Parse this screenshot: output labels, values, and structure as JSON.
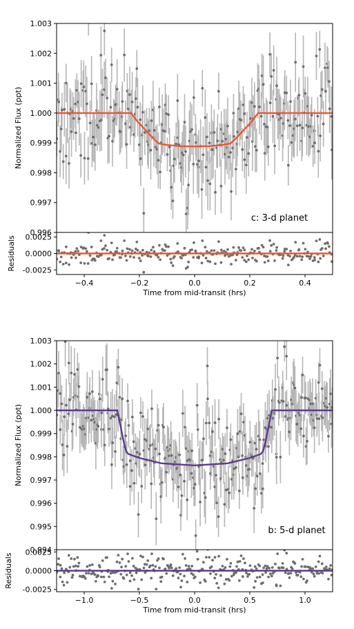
{
  "chart_data": [
    {
      "type": "scatter",
      "panel_label": "c: 3-d planet",
      "ylabel": "Normalized Flux (ppt)",
      "xlabel": "Time from mid-transit (hrs)",
      "residuals_ylabel": "Residuals",
      "xlim": [
        -0.5,
        0.5
      ],
      "ylim": [
        0.996,
        1.003
      ],
      "yticks": [
        "1.003",
        "1.002",
        "1.001",
        "1.000",
        "0.999",
        "0.998",
        "0.997",
        "0.996"
      ],
      "residuals_ylim": [
        -0.0032,
        0.0032
      ],
      "residuals_yticks": [
        "0.0025",
        "0.0000",
        "-0.0025"
      ],
      "xticks": [
        "-0.4",
        "-0.2",
        "0.0",
        "0.2",
        "0.4"
      ],
      "model_color": "#f0532b",
      "point_color": "#6e6e6e",
      "errorbar_color": "#b5b5b5",
      "model": {
        "x": [
          -0.5,
          -0.23,
          -0.21,
          -0.18,
          -0.15,
          -0.13,
          -0.1,
          -0.05,
          0.0,
          0.05,
          0.1,
          0.13,
          0.15,
          0.18,
          0.21,
          0.23,
          0.5
        ],
        "y": [
          1.0,
          1.0,
          0.99975,
          0.99945,
          0.99915,
          0.99898,
          0.99893,
          0.99889,
          0.99888,
          0.99889,
          0.99893,
          0.99898,
          0.99915,
          0.99945,
          0.99975,
          1.0,
          1.0
        ]
      },
      "observations": {
        "description_of_trend": "follows model with scatter ~0.0009",
        "n_points": 260,
        "scatter": 0.0009,
        "err": 0.0008
      }
    },
    {
      "type": "scatter",
      "panel_label": "b: 5-d planet",
      "ylabel": "Normalized Flux (ppt)",
      "xlabel": "Time from mid-transit (hrs)",
      "residuals_ylabel": "Residuals",
      "xlim": [
        -1.25,
        1.25
      ],
      "ylim": [
        0.994,
        1.003
      ],
      "yticks": [
        "1.003",
        "1.002",
        "1.001",
        "1.000",
        "0.999",
        "0.998",
        "0.997",
        "0.996",
        "0.995",
        "0.994"
      ],
      "residuals_ylim": [
        -0.0028,
        0.0028
      ],
      "residuals_yticks": [
        "0.0025",
        "0.0000",
        "-0.0025"
      ],
      "xticks": [
        "-1.0",
        "-0.5",
        "0.0",
        "0.5",
        "1.0"
      ],
      "model_color": "#5b3a8e",
      "point_color": "#6e6e6e",
      "errorbar_color": "#b5b5b5",
      "model": {
        "x": [
          -1.25,
          -0.7,
          -0.67,
          -0.64,
          -0.62,
          -0.6,
          -0.5,
          -0.3,
          0.0,
          0.3,
          0.5,
          0.6,
          0.62,
          0.64,
          0.67,
          0.7,
          1.25
        ],
        "y": [
          1.0,
          1.0,
          0.9993,
          0.9986,
          0.99825,
          0.99812,
          0.99795,
          0.99772,
          0.99763,
          0.99772,
          0.99795,
          0.99812,
          0.99825,
          0.9986,
          0.9993,
          1.0,
          1.0
        ]
      },
      "observations": {
        "n_points": 300,
        "scatter": 0.001,
        "err": 0.0009
      }
    }
  ]
}
